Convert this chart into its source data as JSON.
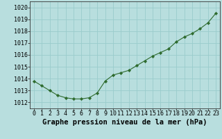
{
  "x": [
    0,
    1,
    2,
    3,
    4,
    5,
    6,
    7,
    8,
    9,
    10,
    11,
    12,
    13,
    14,
    15,
    16,
    17,
    18,
    19,
    20,
    21,
    22,
    23
  ],
  "y": [
    1013.8,
    1013.4,
    1013.0,
    1012.6,
    1012.4,
    1012.3,
    1012.3,
    1012.4,
    1012.8,
    1013.8,
    1014.3,
    1014.5,
    1014.7,
    1015.1,
    1015.5,
    1015.9,
    1016.2,
    1016.5,
    1017.1,
    1017.5,
    1017.8,
    1018.2,
    1018.7,
    1019.5
  ],
  "line_color": "#2d6a2d",
  "marker_color": "#2d6a2d",
  "bg_color": "#b8dede",
  "grid_color": "#99cccc",
  "xlabel": "Graphe pression niveau de la mer (hPa)",
  "xlabel_color": "#000000",
  "ylim": [
    1011.5,
    1020.5
  ],
  "yticks": [
    1012,
    1013,
    1014,
    1015,
    1016,
    1017,
    1018,
    1019,
    1020
  ],
  "xticks": [
    0,
    1,
    2,
    3,
    4,
    5,
    6,
    7,
    8,
    9,
    10,
    11,
    12,
    13,
    14,
    15,
    16,
    17,
    18,
    19,
    20,
    21,
    22,
    23
  ],
  "tick_fontsize": 6.0,
  "xlabel_fontsize": 7.5
}
